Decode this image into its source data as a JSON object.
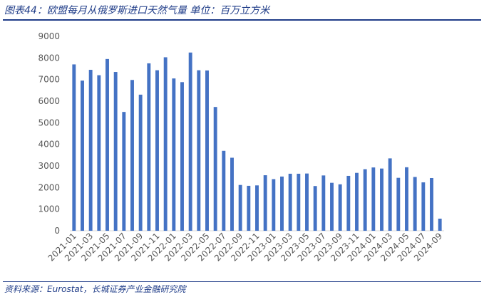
{
  "figure": {
    "title": "图表44：欧盟每月从俄罗斯进口天然气量 单位：百万立方米",
    "source": "资料来源：Eurostat，长城证券产业金融研究院"
  },
  "colors": {
    "bar": "#4472c4",
    "title": "#1f3c88",
    "tick_text": "#595959",
    "axis": "#d9d9d9"
  },
  "chart_data": {
    "type": "bar",
    "title": "",
    "xlabel": "",
    "ylabel": "",
    "ylim": [
      0,
      9000
    ],
    "yticks": [
      0,
      1000,
      2000,
      3000,
      4000,
      5000,
      6000,
      7000,
      8000,
      9000
    ],
    "grid": false,
    "legend": "none",
    "categories": [
      "2021-01",
      "2021-02",
      "2021-03",
      "2021-04",
      "2021-05",
      "2021-06",
      "2021-07",
      "2021-08",
      "2021-09",
      "2021-10",
      "2021-11",
      "2021-12",
      "2022-01",
      "2022-02",
      "2022-03",
      "2022-04",
      "2022-05",
      "2022-06",
      "2022-07",
      "2022-08",
      "2022-09",
      "2022-10",
      "2022-11",
      "2022-12",
      "2023-01",
      "2023-02",
      "2023-03",
      "2023-04",
      "2023-05",
      "2023-06",
      "2023-07",
      "2023-08",
      "2023-09",
      "2023-10",
      "2023-11",
      "2023-12",
      "2024-01",
      "2024-02",
      "2024-03",
      "2024-04",
      "2024-05",
      "2024-06",
      "2024-07",
      "2024-08",
      "2024-09"
    ],
    "xtick_labels": [
      "2021-01",
      "2021-03",
      "2021-05",
      "2021-07",
      "2021-09",
      "2021-11",
      "2022-01",
      "2022-03",
      "2022-05",
      "2022-07",
      "2022-09",
      "2022-11",
      "2023-01",
      "2023-03",
      "2023-05",
      "2023-07",
      "2023-09",
      "2023-11",
      "2024-01",
      "2024-03",
      "2024-05",
      "2024-07",
      "2024-09"
    ],
    "series": [
      {
        "values": [
          7700,
          6950,
          7450,
          7200,
          7950,
          7350,
          5500,
          6980,
          6300,
          7750,
          7430,
          8030,
          7050,
          6880,
          8250,
          7430,
          7420,
          5730,
          3700,
          3380,
          2120,
          2080,
          2100,
          2570,
          2390,
          2510,
          2640,
          2640,
          2650,
          2070,
          2560,
          2220,
          2150,
          2540,
          2680,
          2850,
          2930,
          2880,
          3350,
          2450,
          2940,
          2490,
          2240,
          2440,
          560
        ]
      }
    ]
  }
}
